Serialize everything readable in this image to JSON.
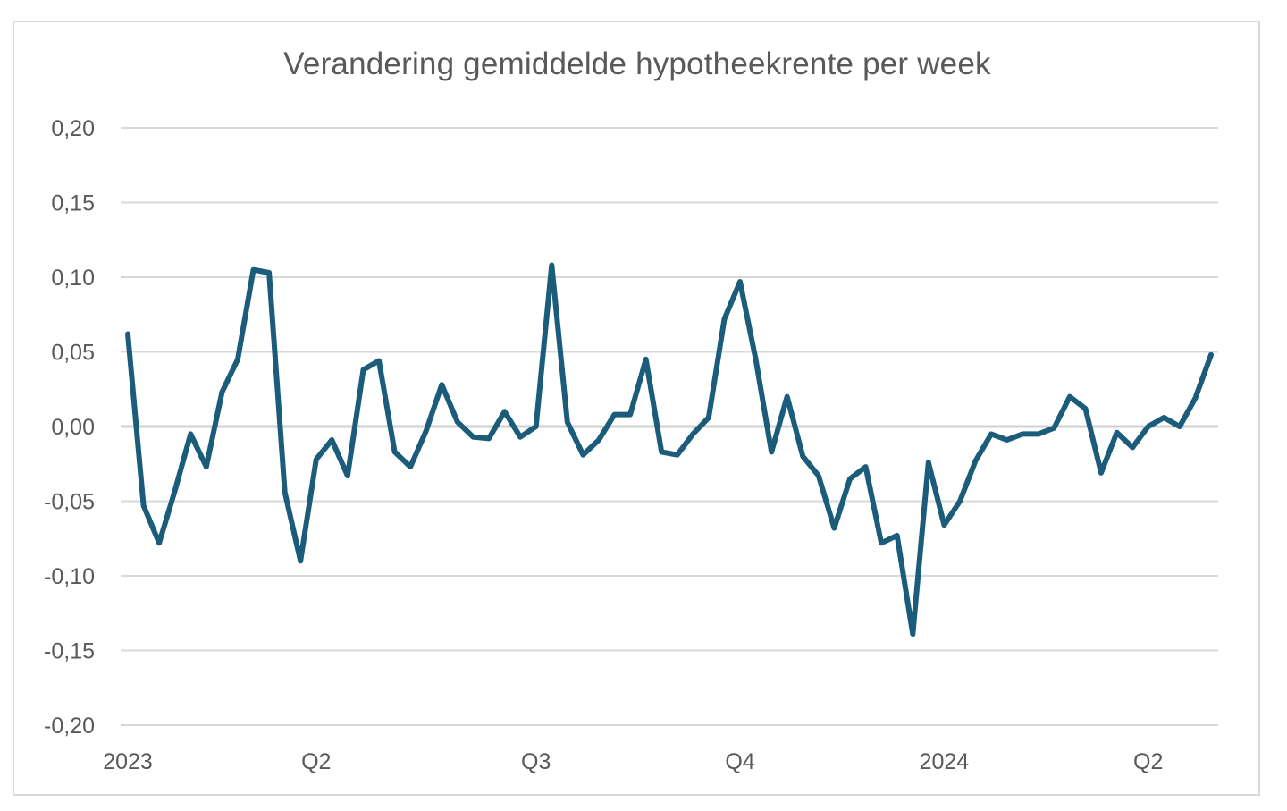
{
  "chart_data": {
    "type": "line",
    "title": "Verandering gemiddelde hypotheekrente per week",
    "xlabel": "",
    "ylabel": "",
    "ylim": [
      -0.2,
      0.2
    ],
    "yticks": [
      "0,20",
      "0,15",
      "0,10",
      "0,05",
      "0,00",
      "-0,05",
      "-0,10",
      "-0,15",
      "-0,20"
    ],
    "ytick_values": [
      0.2,
      0.15,
      0.1,
      0.05,
      0.0,
      -0.05,
      -0.1,
      -0.15,
      -0.2
    ],
    "xticks": [
      {
        "label": "2023",
        "index": 0
      },
      {
        "label": "Q2",
        "index": 12
      },
      {
        "label": "Q3",
        "index": 26
      },
      {
        "label": "Q4",
        "index": 39
      },
      {
        "label": "2024",
        "index": 52
      },
      {
        "label": "Q2",
        "index": 65
      }
    ],
    "grid": true,
    "legend": "none",
    "line_color": "#1b5c7a",
    "series": [
      {
        "values": [
          0.062,
          -0.053,
          -0.078,
          -0.043,
          -0.005,
          -0.027,
          0.023,
          0.045,
          0.105,
          0.103,
          -0.044,
          -0.09,
          -0.022,
          -0.009,
          -0.033,
          0.038,
          0.044,
          -0.017,
          -0.027,
          -0.003,
          0.028,
          0.003,
          -0.007,
          -0.008,
          0.01,
          -0.007,
          0.0,
          0.108,
          0.003,
          -0.019,
          -0.009,
          0.008,
          0.008,
          0.045,
          -0.017,
          -0.019,
          -0.005,
          0.006,
          0.072,
          0.097,
          0.045,
          -0.017,
          0.02,
          -0.02,
          -0.033,
          -0.068,
          -0.035,
          -0.027,
          -0.078,
          -0.073,
          -0.139,
          -0.024,
          -0.066,
          -0.05,
          -0.023,
          -0.005,
          -0.009,
          -0.005,
          -0.005,
          -0.001,
          0.02,
          0.012,
          -0.031,
          -0.004,
          -0.014,
          0.0,
          0.006,
          0.0,
          0.019,
          0.048
        ]
      }
    ]
  }
}
